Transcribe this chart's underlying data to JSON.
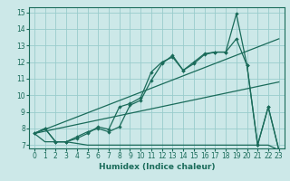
{
  "xlabel": "Humidex (Indice chaleur)",
  "bg_color": "#cce8e8",
  "grid_color": "#99cccc",
  "line_color": "#1a6b5a",
  "xlim": [
    -0.5,
    23.5
  ],
  "ylim": [
    6.8,
    15.3
  ],
  "xticks": [
    0,
    1,
    2,
    3,
    4,
    5,
    6,
    7,
    8,
    9,
    10,
    11,
    12,
    13,
    14,
    15,
    16,
    17,
    18,
    19,
    20,
    21,
    22,
    23
  ],
  "yticks": [
    7,
    8,
    9,
    10,
    11,
    12,
    13,
    14,
    15
  ],
  "series1_x": [
    0,
    1,
    2,
    3,
    4,
    5,
    6,
    7,
    8,
    9,
    10,
    11,
    12,
    13,
    14,
    15,
    16,
    17,
    18,
    19,
    20,
    21,
    22,
    23
  ],
  "series1_y": [
    7.7,
    8.0,
    7.2,
    7.2,
    7.5,
    7.8,
    8.0,
    7.8,
    8.1,
    9.4,
    9.7,
    10.9,
    11.9,
    12.4,
    11.5,
    12.0,
    12.5,
    12.6,
    12.6,
    14.9,
    11.8,
    7.0,
    9.3,
    6.7
  ],
  "series2_x": [
    0,
    1,
    2,
    3,
    4,
    5,
    6,
    7,
    8,
    9,
    10,
    11,
    12,
    13,
    14,
    15,
    16,
    17,
    18,
    19,
    20,
    21,
    22,
    23
  ],
  "series2_y": [
    7.7,
    8.0,
    7.2,
    7.2,
    7.4,
    7.7,
    8.1,
    7.95,
    9.3,
    9.5,
    9.85,
    11.4,
    12.0,
    12.3,
    11.5,
    11.9,
    12.45,
    12.6,
    12.6,
    13.4,
    11.8,
    7.0,
    9.3,
    6.7
  ],
  "trend1_x": [
    0,
    23
  ],
  "trend1_y": [
    7.7,
    13.4
  ],
  "trend2_x": [
    0,
    23
  ],
  "trend2_y": [
    7.7,
    10.8
  ],
  "flat_x": [
    0,
    1,
    2,
    3,
    4,
    5,
    6,
    7,
    8,
    9,
    10,
    11,
    12,
    13,
    14,
    15,
    16,
    17,
    18,
    19,
    20,
    21,
    22,
    23
  ],
  "flat_y": [
    7.7,
    7.2,
    7.2,
    7.2,
    7.1,
    7.0,
    7.0,
    7.0,
    7.0,
    7.0,
    7.0,
    7.0,
    7.0,
    7.0,
    7.0,
    7.0,
    7.0,
    7.0,
    7.0,
    7.0,
    7.0,
    7.0,
    7.0,
    6.7
  ],
  "xlabel_fontsize": 6.5,
  "tick_fontsize": 5.5
}
